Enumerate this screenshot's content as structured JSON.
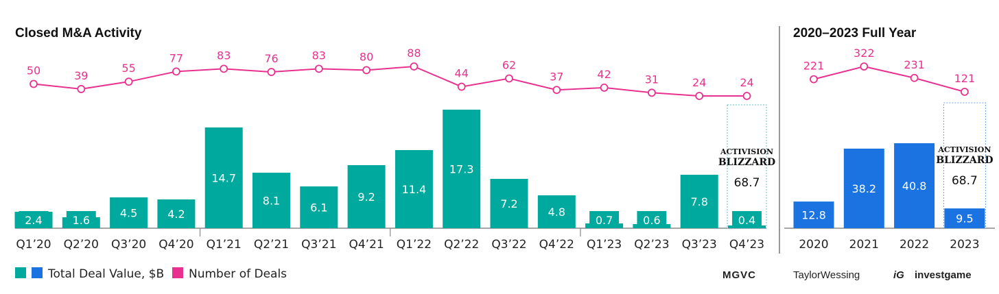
{
  "chart_data": [
    {
      "type": "bar+line",
      "title": "Closed M&A Activity",
      "categories": [
        "Q1’20",
        "Q2’20",
        "Q3’20",
        "Q4’20",
        "Q1’21",
        "Q2’21",
        "Q3’21",
        "Q4’21",
        "Q1’22",
        "Q2’22",
        "Q3’22",
        "Q4’22",
        "Q1’23",
        "Q2’23",
        "Q3’23",
        "Q4’23"
      ],
      "series": [
        {
          "name": "Total Deal Value, $B",
          "type": "bar",
          "color": "#00a99d",
          "values": [
            2.4,
            1.6,
            4.5,
            4.2,
            14.7,
            8.1,
            6.1,
            9.2,
            11.4,
            17.3,
            7.2,
            4.8,
            0.7,
            0.6,
            7.8,
            0.4
          ]
        },
        {
          "name": "Number of Deals",
          "type": "line",
          "color": "#e8318f",
          "values": [
            50,
            39,
            55,
            77,
            83,
            76,
            83,
            80,
            88,
            44,
            62,
            37,
            42,
            31,
            24,
            24
          ]
        }
      ],
      "annotation": {
        "category": "Q4’23",
        "label": "Activision Blizzard",
        "value": 68.7
      }
    },
    {
      "type": "bar+line",
      "title": "2020–2023 Full Year",
      "categories": [
        "2020",
        "2021",
        "2022",
        "2023"
      ],
      "series": [
        {
          "name": "Total Deal Value, $B",
          "type": "bar",
          "color": "#1a73e0",
          "values": [
            12.8,
            38.2,
            40.8,
            9.5
          ]
        },
        {
          "name": "Number of Deals",
          "type": "line",
          "color": "#e8318f",
          "values": [
            221,
            322,
            231,
            121
          ]
        }
      ],
      "annotation": {
        "category": "2023",
        "label": "Activision Blizzard",
        "value": 68.7
      }
    }
  ],
  "legend": {
    "value_label": "Total Deal Value, $B",
    "count_label": "Number of Deals"
  },
  "logos": [
    "MGVC",
    "TaylorWessing",
    "investgame"
  ]
}
